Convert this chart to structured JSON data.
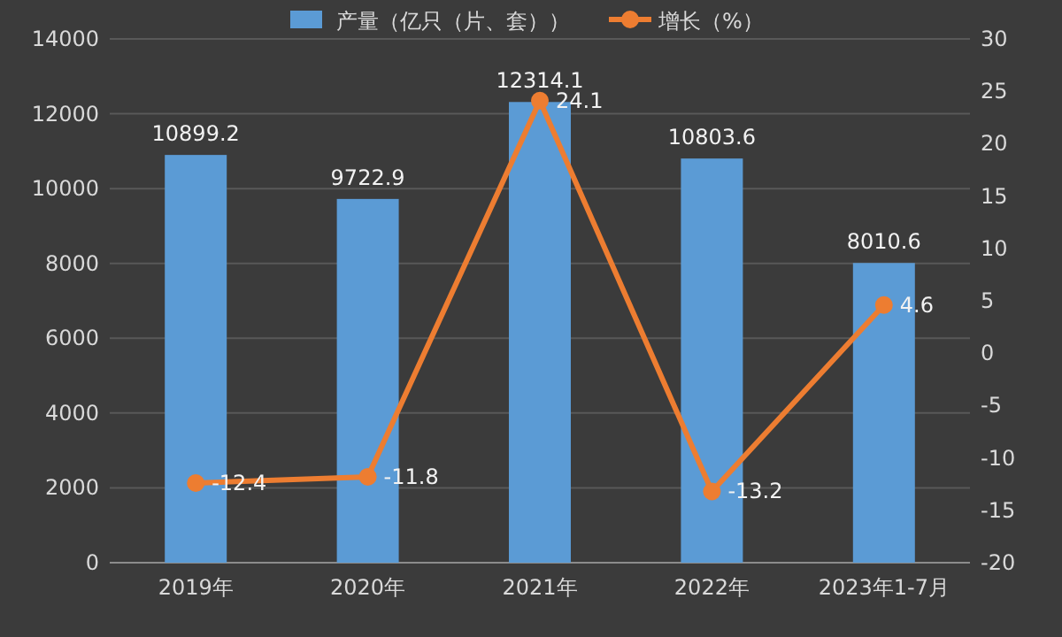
{
  "chart_data": {
    "type": "bar",
    "categories": [
      "2019年",
      "2020年",
      "2021年",
      "2022年",
      "2023年1-7月"
    ],
    "series": [
      {
        "name": "产量（亿只（片、套））",
        "color": "#5b9bd5",
        "values": [
          10899.2,
          9722.9,
          12314.1,
          10803.6,
          8010.6
        ]
      },
      {
        "name": "增长（%）",
        "type": "line",
        "axis": "y2",
        "color": "#ed7d31",
        "values": [
          -12.4,
          -11.8,
          24.1,
          -13.2,
          4.6
        ]
      }
    ],
    "ylim": [
      0,
      14000
    ],
    "yticks": [
      0,
      2000,
      4000,
      6000,
      8000,
      10000,
      12000,
      14000
    ],
    "y2lim": [
      -20,
      30
    ],
    "y2ticks": [
      -20,
      -15,
      -10,
      -5,
      0,
      5,
      10,
      15,
      20,
      25,
      30
    ],
    "data_labels": true,
    "grid": "y",
    "legend": "top",
    "marker": "circle"
  }
}
